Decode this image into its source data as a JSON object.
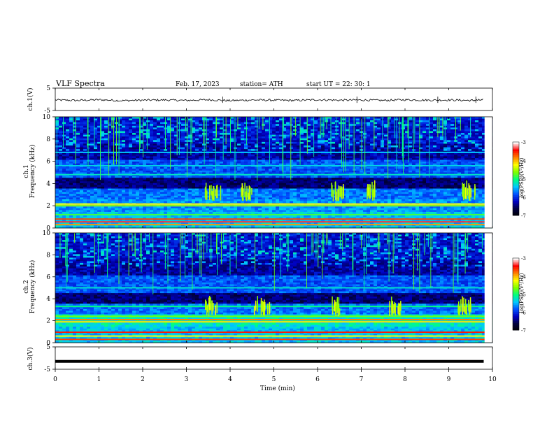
{
  "header": {
    "title": "VLF  Spectra",
    "date": "Feb. 17, 2023",
    "station": "station= ATH",
    "start": "start  UT  =    22: 30: 1"
  },
  "chart_data": [
    {
      "type": "line",
      "panel": "ch1",
      "ylabel": "ch.1(V)",
      "ylim": [
        -5,
        5
      ],
      "yticks": [
        "5",
        "-5"
      ],
      "xlim": [
        0,
        10
      ],
      "x": [
        0,
        0.5,
        1,
        1.5,
        2,
        2.5,
        3,
        3.5,
        4,
        4.5,
        5,
        5.5,
        6,
        6.5,
        7,
        7.5,
        8,
        8.5,
        9,
        9.5,
        9.8
      ],
      "values": [
        -0.3,
        -0.5,
        -0.2,
        -0.6,
        -0.4,
        -0.3,
        -0.5,
        -0.2,
        -0.6,
        -0.3,
        -0.4,
        -0.5,
        -0.2,
        -0.4,
        -0.3,
        -0.5,
        -0.2,
        -0.4,
        -0.3,
        -0.5,
        -0.3
      ]
    },
    {
      "type": "heatmap",
      "panel": "ch1",
      "ylabel_line1": "ch.1",
      "ylabel_line2": "Frequency  (kHz)",
      "ylim": [
        0,
        10
      ],
      "yticks": [
        "0",
        "2",
        "4",
        "6",
        "8",
        "10"
      ],
      "xlim": [
        0,
        10
      ],
      "colorbar": {
        "label": "log(PSD)(V²/Hz)",
        "range": [
          -7,
          -3
        ],
        "ticks": [
          "-3",
          "-4",
          "-5",
          "-6",
          "-7"
        ]
      }
    },
    {
      "type": "heatmap",
      "panel": "ch2",
      "ylabel_line1": "ch.2",
      "ylabel_line2": "Frequency  (kHz)",
      "ylim": [
        0,
        10
      ],
      "yticks": [
        "0",
        "2",
        "4",
        "6",
        "8",
        "10"
      ],
      "xlim": [
        0,
        10
      ],
      "colorbar": {
        "label": "log(PSD)(V²/Hz)",
        "range": [
          -7,
          -3
        ],
        "ticks": [
          "-3",
          "-4",
          "-5",
          "-6",
          "-7"
        ]
      }
    },
    {
      "type": "line",
      "panel": "ch3",
      "ylabel": "ch.3(V)",
      "ylim": [
        -5,
        5
      ],
      "yticks": [
        "5",
        "-5"
      ],
      "xlim": [
        0,
        10
      ],
      "x": [
        0,
        9.8
      ],
      "values": [
        -1.5,
        -1.5
      ]
    }
  ],
  "xaxis": {
    "label": "Time  (min)",
    "ticks": [
      "0",
      "1",
      "2",
      "3",
      "4",
      "5",
      "6",
      "7",
      "8",
      "9",
      "10"
    ]
  },
  "colors": {
    "spectrogram_scale": [
      "#000000",
      "#000040",
      "#0000c0",
      "#0050ff",
      "#00c8ff",
      "#00ff80",
      "#80ff00",
      "#ffff00",
      "#ff8000",
      "#ff0000",
      "#ffffff"
    ]
  }
}
